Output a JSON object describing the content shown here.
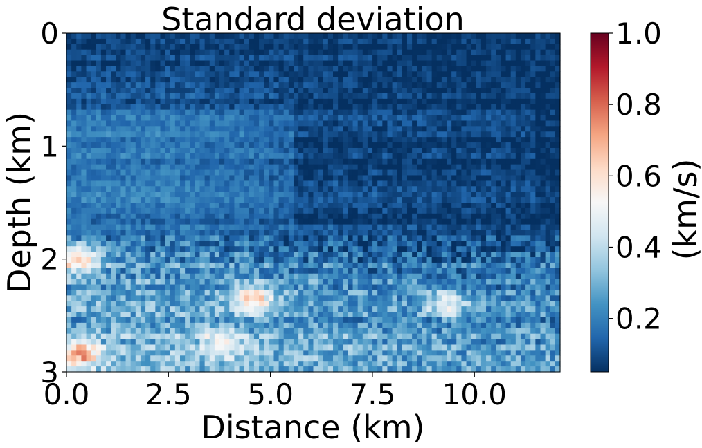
{
  "chart_data": {
    "type": "heatmap",
    "title": "Standard deviation",
    "xlabel": "Distance (km)",
    "ylabel": "Depth (km)",
    "xlim": [
      0,
      12.1
    ],
    "ylim": [
      3,
      0
    ],
    "x_ticks": [
      0,
      2.5,
      5,
      7.5,
      10
    ],
    "x_tick_labels": [
      "0.0",
      "2.5",
      "5.0",
      "7.5",
      "10.0"
    ],
    "y_ticks": [
      0,
      1,
      2,
      3
    ],
    "y_tick_labels": [
      "0",
      "1",
      "2",
      "3"
    ],
    "colorbar": {
      "label": "(km/s)",
      "colormap": "RdBu_r",
      "range": [
        0.05,
        1.0
      ],
      "ticks": [
        0.2,
        0.4,
        0.6,
        0.8,
        1.0
      ],
      "tick_labels": [
        "0.2",
        "0.4",
        "0.6",
        "0.8",
        "1.0"
      ],
      "colors": [
        "#053061",
        "#2166ac",
        "#4393c3",
        "#92c5de",
        "#d1e5f0",
        "#f7f7f7",
        "#fddbc7",
        "#f4a582",
        "#d6604d",
        "#b2182b",
        "#67001f"
      ]
    },
    "depth_profile_km": [
      0,
      0.3,
      0.6,
      0.9,
      1.2,
      1.5,
      1.8,
      2.1,
      2.4,
      2.7,
      3.0
    ],
    "mean_std_left_km_s": [
      0.07,
      0.1,
      0.14,
      0.2,
      0.19,
      0.18,
      0.2,
      0.24,
      0.27,
      0.3,
      0.32
    ],
    "mean_std_right_km_s": [
      0.06,
      0.07,
      0.08,
      0.1,
      0.1,
      0.08,
      0.12,
      0.18,
      0.22,
      0.24,
      0.25
    ],
    "hotspots": [
      {
        "x_km": 0.3,
        "depth_km": 2.0,
        "std_km_s": 0.65
      },
      {
        "x_km": 0.3,
        "depth_km": 2.85,
        "std_km_s": 0.6
      },
      {
        "x_km": 4.6,
        "depth_km": 2.35,
        "std_km_s": 0.55
      },
      {
        "x_km": 9.3,
        "depth_km": 2.4,
        "std_km_s": 0.45
      },
      {
        "x_km": 3.8,
        "depth_km": 2.75,
        "std_km_s": 0.45
      }
    ],
    "grid": false,
    "legend": "none"
  }
}
